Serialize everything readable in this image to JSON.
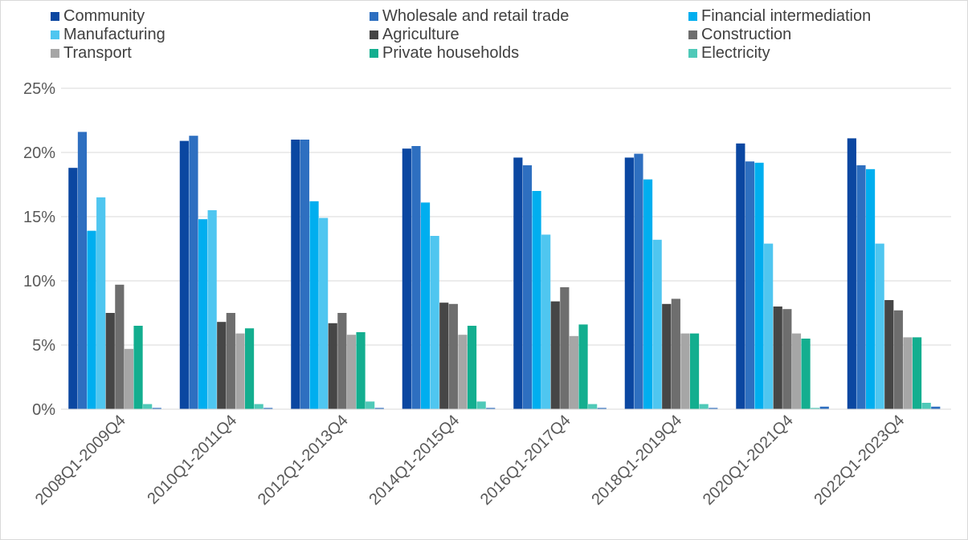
{
  "chart_data": {
    "type": "bar",
    "categories": [
      "2008Q1-2009Q4",
      "2010Q1-2011Q4",
      "2012Q1-2013Q4",
      "2014Q1-2015Q4",
      "2016Q1-2017Q4",
      "2018Q1-2019Q4",
      "2020Q1-2021Q4",
      "2022Q1-2023Q4"
    ],
    "ylim": [
      0,
      25
    ],
    "yticks": [
      "0%",
      "5%",
      "10%",
      "15%",
      "20%",
      "25%"
    ],
    "grid": true,
    "legend_position": "top",
    "series": [
      {
        "name": "Community",
        "color": "#0b47a1",
        "values": [
          18.8,
          20.9,
          21.0,
          20.3,
          19.6,
          19.6,
          20.7,
          21.1
        ]
      },
      {
        "name": "Wholesale and retail trade",
        "color": "#2e6fc0",
        "values": [
          21.6,
          21.3,
          21.0,
          20.5,
          19.0,
          19.9,
          19.3,
          19.0
        ]
      },
      {
        "name": "Financial intermediation",
        "color": "#00aeef",
        "values": [
          13.9,
          14.8,
          16.2,
          16.1,
          17.0,
          17.9,
          19.2,
          18.7
        ]
      },
      {
        "name": "Manufacturing",
        "color": "#4fc6f0",
        "values": [
          16.5,
          15.5,
          14.9,
          13.5,
          13.6,
          13.2,
          12.9,
          12.9
        ]
      },
      {
        "name": "Agriculture",
        "color": "#464646",
        "values": [
          7.5,
          6.8,
          6.7,
          8.3,
          8.4,
          8.2,
          8.0,
          8.5
        ]
      },
      {
        "name": "Construction",
        "color": "#6e6e6e",
        "values": [
          9.7,
          7.5,
          7.5,
          8.2,
          9.5,
          8.6,
          7.8,
          7.7
        ]
      },
      {
        "name": "Transport",
        "color": "#a6a6a6",
        "values": [
          4.7,
          5.9,
          5.8,
          5.8,
          5.7,
          5.9,
          5.9,
          5.6
        ]
      },
      {
        "name": "Private households",
        "color": "#13ae8f",
        "values": [
          6.5,
          6.3,
          6.0,
          6.5,
          6.6,
          5.9,
          5.5,
          5.6
        ]
      },
      {
        "name": "Electricity",
        "color": "#4fc9b8",
        "values": [
          0.4,
          0.4,
          0.6,
          0.6,
          0.4,
          0.4,
          0.1,
          0.5
        ]
      },
      {
        "name": "",
        "color": "#2e6fc0",
        "values": [
          0.1,
          0.1,
          0.1,
          0.1,
          0.1,
          0.1,
          0.2,
          0.2
        ]
      }
    ]
  }
}
